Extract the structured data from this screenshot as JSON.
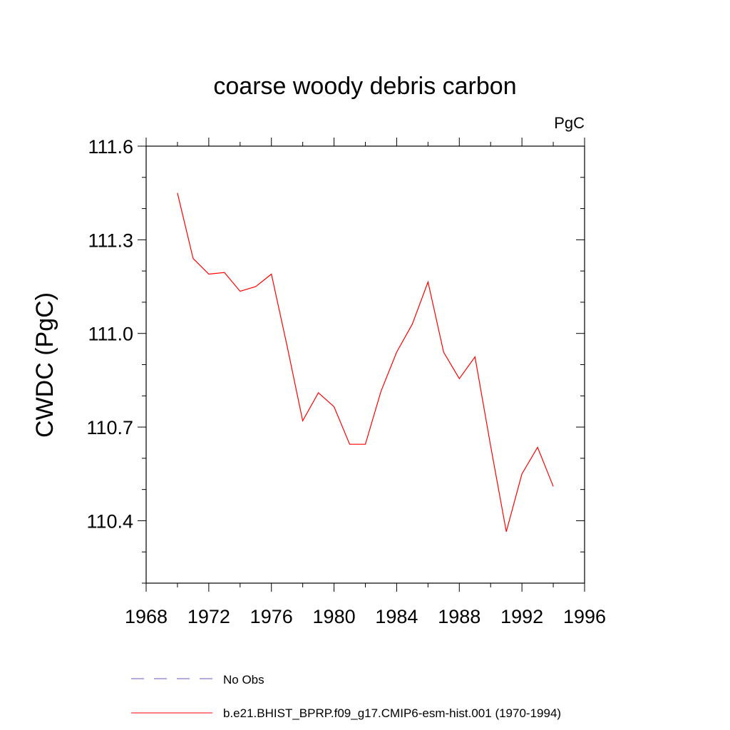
{
  "chart_data": {
    "type": "line",
    "title": "coarse woody debris carbon",
    "units_label": "PgC",
    "ylabel": "CWDC  (PgC)",
    "xlabel": "",
    "xlim": [
      1968,
      1996
    ],
    "ylim": [
      110.2,
      111.6
    ],
    "x_ticks": [
      1968,
      1972,
      1976,
      1980,
      1984,
      1988,
      1992,
      1996
    ],
    "x_tick_labels": [
      "1968",
      "1972",
      "1976",
      "1980",
      "1984",
      "1988",
      "1992",
      "1996"
    ],
    "y_ticks": [
      110.4,
      110.7,
      111.0,
      111.3,
      111.6
    ],
    "y_tick_labels": [
      "110.4",
      "110.7",
      "111.0",
      "111.3",
      "111.6"
    ],
    "grid": false,
    "legend_position": "bottom",
    "series": [
      {
        "name": "b.e21.BHIST_BPRP.f09_g17.CMIP6-esm-hist.001 (1970-1994)",
        "color": "#ff0000",
        "style": "solid",
        "x": [
          1970,
          1971,
          1972,
          1973,
          1974,
          1975,
          1976,
          1977,
          1978,
          1979,
          1980,
          1981,
          1982,
          1983,
          1984,
          1985,
          1986,
          1987,
          1988,
          1989,
          1990,
          1991,
          1992,
          1993,
          1994
        ],
        "values": [
          111.45,
          111.24,
          111.19,
          111.195,
          111.135,
          111.15,
          111.19,
          110.96,
          110.72,
          110.81,
          110.765,
          110.645,
          110.645,
          110.815,
          110.94,
          111.03,
          111.165,
          110.94,
          110.855,
          110.925,
          110.64,
          110.365,
          110.55,
          110.635,
          110.51
        ]
      }
    ],
    "legend": [
      {
        "label": "No Obs",
        "color": "#6a5acd",
        "style": "dashed"
      },
      {
        "label": "b.e21.BHIST_BPRP.f09_g17.CMIP6-esm-hist.001 (1970-1994)",
        "color": "#ff0000",
        "style": "solid"
      }
    ]
  }
}
